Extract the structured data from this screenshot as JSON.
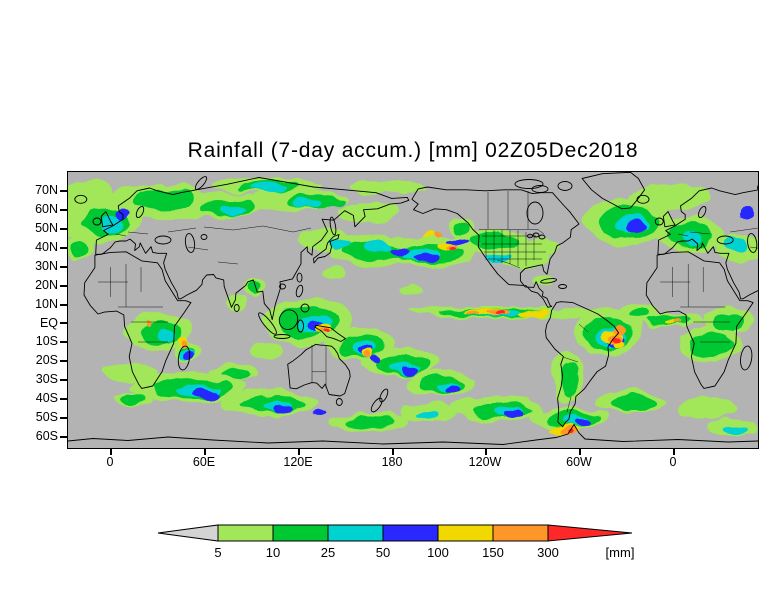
{
  "title": "Rainfall (7-day accum.) [mm] 02Z05Dec2018",
  "map": {
    "lat_labels": [
      "70N",
      "60N",
      "50N",
      "40N",
      "30N",
      "20N",
      "10N",
      "EQ",
      "10S",
      "20S",
      "30S",
      "40S",
      "50S",
      "60S"
    ],
    "lon_labels": [
      "0",
      "60E",
      "120E",
      "180",
      "120W",
      "60W",
      "0"
    ],
    "background_color": "#b3b3b3",
    "coastline_color": "#000000"
  },
  "colorbar": {
    "levels": [
      "5",
      "10",
      "25",
      "50",
      "100",
      "150",
      "300"
    ],
    "unit": "[mm]",
    "below_arrow_color": "#d4d4d4",
    "segment_colors": [
      "#a2e65a",
      "#00c832",
      "#00d2d2",
      "#2828ff",
      "#f0d800",
      "#ff9628"
    ],
    "above_arrow_color": "#ff2828"
  },
  "chart_data": {
    "type": "heatmap",
    "title": "Rainfall (7-day accum.) [mm] 02Z05Dec2018",
    "legend_levels_mm": [
      5,
      10,
      25,
      50,
      100,
      150,
      300
    ],
    "legend_colors": [
      "#d4d4d4",
      "#a2e65a",
      "#00c832",
      "#00d2d2",
      "#2828ff",
      "#f0d800",
      "#ff9628",
      "#ff2828"
    ],
    "x_tick_labels": [
      "0",
      "60E",
      "120E",
      "180",
      "120W",
      "60W",
      "0"
    ],
    "y_tick_labels": [
      "70N",
      "60N",
      "50N",
      "40N",
      "30N",
      "20N",
      "10N",
      "EQ",
      "10S",
      "20S",
      "30S",
      "40S",
      "50S",
      "60S"
    ],
    "legend_position": "bottom"
  }
}
